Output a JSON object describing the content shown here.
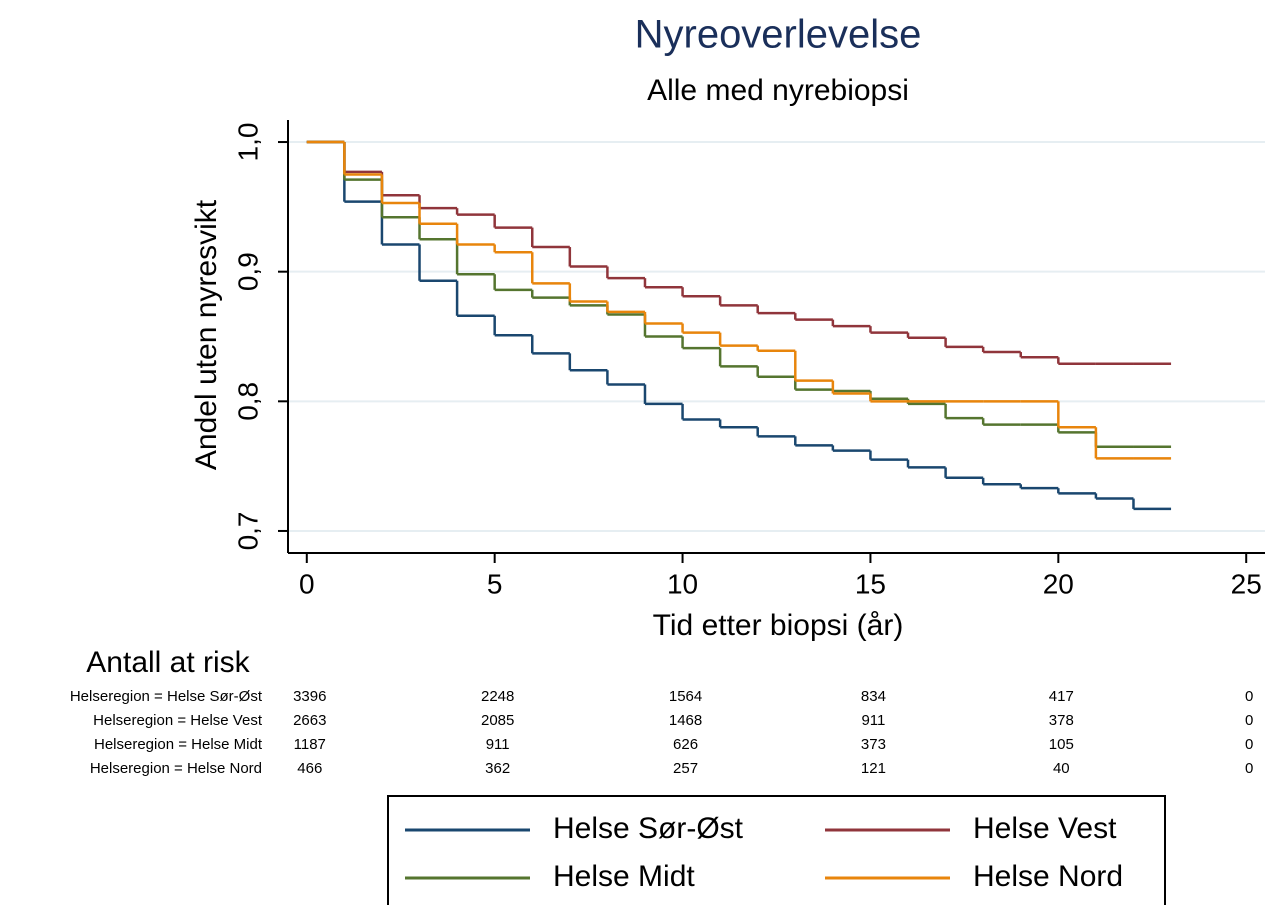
{
  "chart_data": {
    "type": "step",
    "title": "Nyreoverlevelse",
    "subtitle": "Alle med nyrebiopsi",
    "x_label": "Tid etter biopsi (år)",
    "y_label": "Andel uten nyresvikt",
    "xlim": [
      -0.5,
      25.5
    ],
    "ylim": [
      0.683,
      1.017
    ],
    "xticks": [
      0,
      5,
      10,
      15,
      20,
      25
    ],
    "yticks": [
      {
        "value": 0.7,
        "label": "0,7"
      },
      {
        "value": 0.8,
        "label": "0,8"
      },
      {
        "value": 0.9,
        "label": "0,9"
      },
      {
        "value": 1.0,
        "label": "1,0"
      }
    ],
    "grid": true,
    "x": [
      0,
      1,
      2,
      3,
      4,
      5,
      6,
      7,
      8,
      9,
      10,
      11,
      12,
      13,
      14,
      15,
      16,
      17,
      18,
      19,
      20,
      21,
      22,
      23
    ],
    "series": [
      {
        "name": "Helse Sør-Øst",
        "color": "#1a476f",
        "values": [
          1.0,
          0.954,
          0.921,
          0.893,
          0.866,
          0.851,
          0.837,
          0.824,
          0.813,
          0.798,
          0.786,
          0.78,
          0.773,
          0.766,
          0.762,
          0.755,
          0.749,
          0.741,
          0.736,
          0.733,
          0.729,
          0.725,
          0.717,
          0.717
        ]
      },
      {
        "name": "Helse Vest",
        "color": "#90353b",
        "values": [
          1.0,
          0.977,
          0.959,
          0.949,
          0.944,
          0.934,
          0.919,
          0.904,
          0.895,
          0.888,
          0.881,
          0.874,
          0.868,
          0.863,
          0.858,
          0.853,
          0.849,
          0.842,
          0.838,
          0.834,
          0.829,
          0.829,
          0.829,
          0.829
        ]
      },
      {
        "name": "Helse Midt",
        "color": "#55752f",
        "values": [
          1.0,
          0.971,
          0.942,
          0.925,
          0.898,
          0.886,
          0.88,
          0.874,
          0.867,
          0.85,
          0.841,
          0.827,
          0.819,
          0.809,
          0.808,
          0.802,
          0.798,
          0.787,
          0.782,
          0.782,
          0.776,
          0.765,
          0.765,
          0.765
        ]
      },
      {
        "name": "Helse Nord",
        "color": "#e8850c",
        "values": [
          1.0,
          0.975,
          0.953,
          0.937,
          0.921,
          0.915,
          0.891,
          0.877,
          0.869,
          0.86,
          0.853,
          0.843,
          0.839,
          0.816,
          0.806,
          0.8,
          0.8,
          0.8,
          0.8,
          0.8,
          0.78,
          0.756,
          0.756,
          0.756
        ]
      }
    ],
    "risk_table": {
      "title": "Antall at risk",
      "times": [
        0,
        5,
        10,
        15,
        20,
        25
      ],
      "rows": [
        {
          "label": "Helseregion = Helse Sør-Øst",
          "counts": [
            3396,
            2248,
            1564,
            834,
            417,
            0
          ]
        },
        {
          "label": "Helseregion = Helse Vest",
          "counts": [
            2663,
            2085,
            1468,
            911,
            378,
            0
          ]
        },
        {
          "label": "Helseregion = Helse Midt",
          "counts": [
            1187,
            911,
            626,
            373,
            105,
            0
          ]
        },
        {
          "label": "Helseregion = Helse Nord",
          "counts": [
            466,
            362,
            257,
            121,
            40,
            0
          ]
        }
      ]
    }
  }
}
